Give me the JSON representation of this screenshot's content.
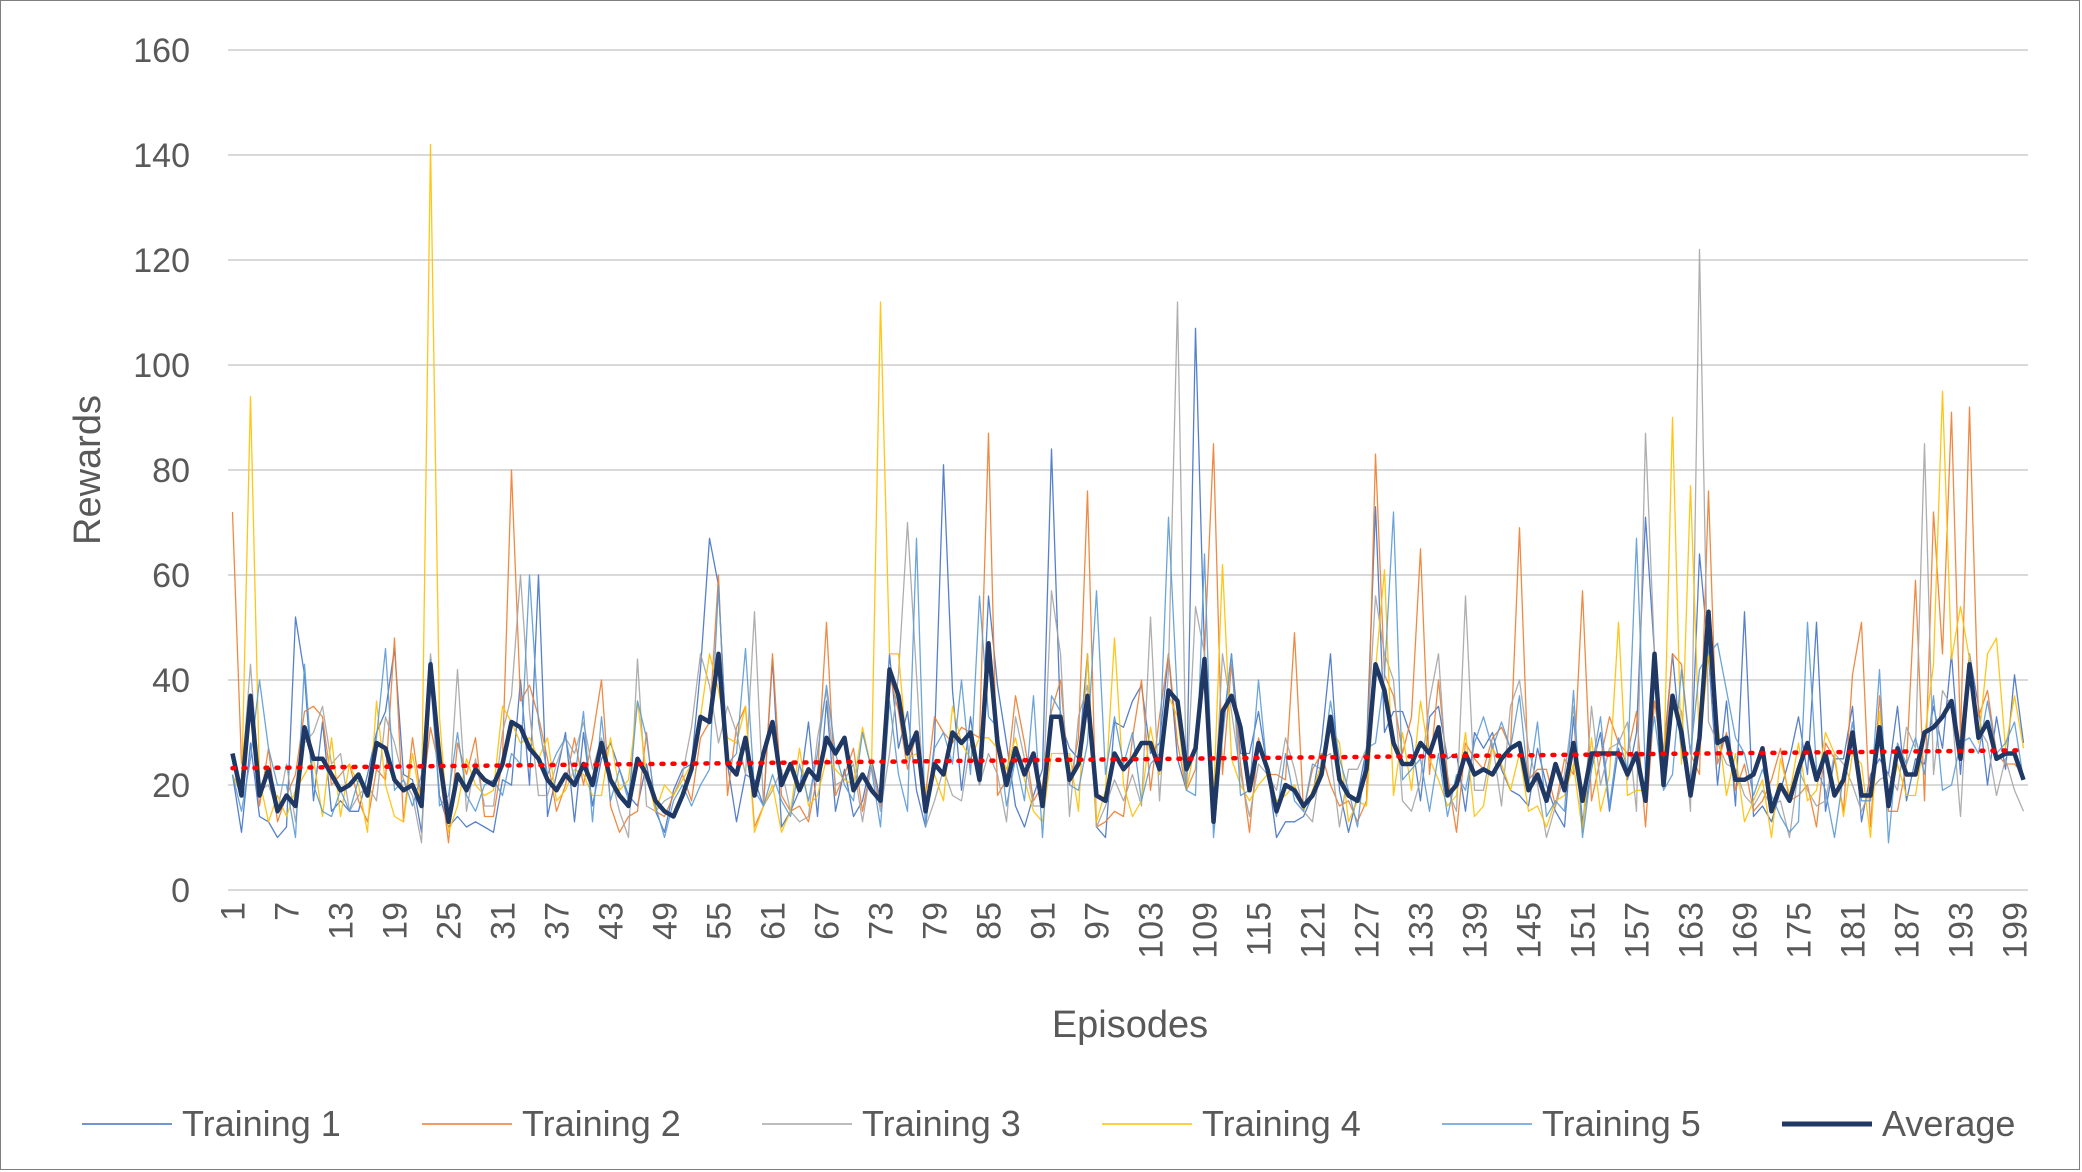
{
  "chart_data": {
    "type": "line",
    "xlabel": "Episodes",
    "ylabel": "Rewards",
    "ylim": [
      0,
      160
    ],
    "yticks": [
      "0",
      "20",
      "40",
      "60",
      "80",
      "100",
      "120",
      "140",
      "160"
    ],
    "x_tick_labels": [
      "1",
      "7",
      "13",
      "19",
      "25",
      "31",
      "37",
      "43",
      "49",
      "55",
      "61",
      "67",
      "73",
      "79",
      "85",
      "91",
      "97",
      "103",
      "109",
      "115",
      "121",
      "127",
      "133",
      "139",
      "145",
      "151",
      "157",
      "163",
      "169",
      "175",
      "181",
      "187",
      "193",
      "199"
    ],
    "episodes": 200,
    "grid": true,
    "legend_position": "bottom",
    "series": [
      {
        "name": "Training 1",
        "color": "#4472C4",
        "width": 1.3,
        "peaks": [
          [
            1,
            22
          ],
          [
            8,
            52
          ],
          [
            19,
            46
          ],
          [
            35,
            60
          ],
          [
            54,
            67
          ],
          [
            55,
            58
          ],
          [
            80,
            81
          ],
          [
            85,
            56
          ],
          [
            92,
            84
          ],
          [
            108,
            107
          ],
          [
            128,
            73
          ],
          [
            158,
            71
          ],
          [
            164,
            64
          ],
          [
            169,
            53
          ],
          [
            177,
            51
          ],
          [
            199,
            41
          ]
        ]
      },
      {
        "name": "Training 2",
        "color": "#ED7D31",
        "width": 1.3,
        "peaks": [
          [
            1,
            72
          ],
          [
            19,
            48
          ],
          [
            32,
            80
          ],
          [
            55,
            60
          ],
          [
            67,
            51
          ],
          [
            85,
            87
          ],
          [
            96,
            76
          ],
          [
            110,
            85
          ],
          [
            119,
            49
          ],
          [
            128,
            83
          ],
          [
            133,
            65
          ],
          [
            144,
            69
          ],
          [
            151,
            57
          ],
          [
            165,
            76
          ],
          [
            182,
            51
          ],
          [
            188,
            59
          ],
          [
            190,
            72
          ],
          [
            192,
            91
          ],
          [
            194,
            92
          ]
        ]
      },
      {
        "name": "Training 3",
        "color": "#A5A5A5",
        "width": 1.3,
        "peaks": [
          [
            26,
            42
          ],
          [
            33,
            60
          ],
          [
            46,
            44
          ],
          [
            59,
            53
          ],
          [
            76,
            70
          ],
          [
            92,
            57
          ],
          [
            103,
            52
          ],
          [
            106,
            112
          ],
          [
            108,
            54
          ],
          [
            128,
            56
          ],
          [
            138,
            56
          ],
          [
            158,
            87
          ],
          [
            164,
            122
          ],
          [
            189,
            85
          ]
        ]
      },
      {
        "name": "Training 4",
        "color": "#FFC000",
        "width": 1.3,
        "peaks": [
          [
            3,
            94
          ],
          [
            23,
            142
          ],
          [
            55,
            38
          ],
          [
            73,
            112
          ],
          [
            99,
            48
          ],
          [
            111,
            62
          ],
          [
            129,
            61
          ],
          [
            155,
            51
          ],
          [
            161,
            90
          ],
          [
            163,
            77
          ],
          [
            191,
            95
          ],
          [
            193,
            54
          ],
          [
            197,
            48
          ]
        ]
      },
      {
        "name": "Training 5",
        "color": "#5B9BD5",
        "width": 1.3,
        "peaks": [
          [
            4,
            40
          ],
          [
            18,
            46
          ],
          [
            34,
            60
          ],
          [
            55,
            58
          ],
          [
            58,
            46
          ],
          [
            77,
            67
          ],
          [
            84,
            56
          ],
          [
            97,
            57
          ],
          [
            105,
            71
          ],
          [
            109,
            64
          ],
          [
            130,
            72
          ],
          [
            157,
            67
          ],
          [
            166,
            47
          ],
          [
            176,
            51
          ],
          [
            184,
            42
          ]
        ]
      },
      {
        "name": "Average",
        "color": "#203864",
        "width": 4.5,
        "values": [
          26,
          18,
          37,
          18,
          23,
          15,
          18,
          16,
          31,
          25,
          25,
          22,
          19,
          20,
          22,
          18,
          28,
          27,
          21,
          19,
          20,
          16,
          43,
          25,
          13,
          22,
          19,
          23,
          21,
          20,
          24,
          32,
          31,
          27,
          25,
          21,
          19,
          22,
          20,
          24,
          20,
          28,
          21,
          18,
          16,
          25,
          22,
          17,
          15,
          14,
          18,
          23,
          33,
          32,
          45,
          24,
          22,
          29,
          18,
          26,
          32,
          20,
          24,
          19,
          23,
          21,
          29,
          26,
          29,
          19,
          22,
          19,
          17,
          42,
          37,
          26,
          30,
          15,
          24,
          22,
          30,
          28,
          30,
          21,
          47,
          28,
          20,
          27,
          22,
          26,
          16,
          33,
          33,
          21,
          24,
          37,
          18,
          17,
          26,
          23,
          25,
          28,
          28,
          23,
          38,
          36,
          23,
          27,
          44,
          13,
          34,
          37,
          31,
          19,
          28,
          23,
          15,
          20,
          19,
          16,
          18,
          22,
          33,
          21,
          18,
          17,
          23,
          43,
          38,
          28,
          24,
          24,
          28,
          26,
          31,
          18,
          20,
          26,
          22,
          23,
          22,
          25,
          27,
          28,
          19,
          22,
          17,
          24,
          19,
          28,
          17,
          26,
          26,
          26,
          26,
          22,
          26,
          17,
          45,
          20,
          37,
          30,
          18,
          29,
          53,
          28,
          29,
          21,
          21,
          22,
          27,
          15,
          20,
          17,
          23,
          28,
          21,
          26,
          18,
          21,
          30,
          18,
          18,
          31,
          16,
          27,
          22,
          22,
          30,
          31,
          33,
          36,
          25,
          43,
          29,
          32,
          25,
          26,
          26,
          21
        ]
      },
      {
        "name": "",
        "color": "#FF0000",
        "width": 4.5,
        "dotted": true,
        "trend": [
          23.2,
          26.6
        ],
        "legend": false
      }
    ]
  }
}
